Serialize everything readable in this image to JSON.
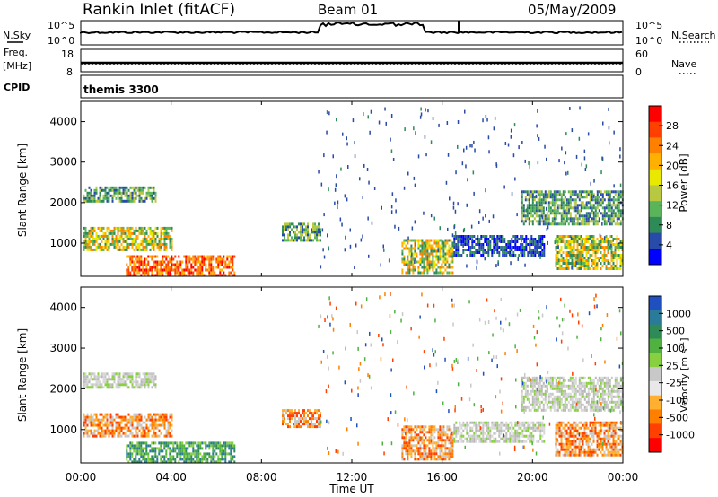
{
  "header": {
    "station": "Rankin Inlet (fitACF)",
    "beam": "Beam 01",
    "date": "05/May/2009"
  },
  "noise_panel": {
    "left_label": "N.Sky",
    "right_label": "N.Search",
    "left_ticks": [
      "10^5",
      "10^0"
    ],
    "right_ticks": [
      "10^5",
      "10^0"
    ]
  },
  "freq_panel": {
    "left_label_1": "Freq.",
    "left_label_2": "[MHz]",
    "right_label": "Nave",
    "left_ticks": [
      "18",
      "8"
    ],
    "right_ticks": [
      "60",
      "0"
    ]
  },
  "cpid_panel": {
    "label": "CPID",
    "value": "themis 3300"
  },
  "power_colorbar": {
    "title": "Power [dB]",
    "ticks": [
      "28",
      "24",
      "20",
      "16",
      "12",
      "8",
      "4"
    ],
    "colors": [
      "#ff0000",
      "#ff4000",
      "#ff8000",
      "#ffb000",
      "#e8e800",
      "#b8c840",
      "#5ab45a",
      "#2e8b57",
      "#284aa8",
      "#0000ff"
    ]
  },
  "velocity_colorbar": {
    "title_main": "Velocity  [m s",
    "title_sup": "-1",
    "title_end": "]",
    "ticks": [
      "1000",
      "500",
      "100",
      "25",
      "-25",
      "-100",
      "-500",
      "-1000"
    ],
    "colors": [
      "#2050c0",
      "#2a7a9a",
      "#2e8b57",
      "#50b040",
      "#88d040",
      "#c8c8c8",
      "#e8e8e8",
      "#ffb030",
      "#ff8000",
      "#ff4000",
      "#ff0000"
    ]
  },
  "y_axis_label": "Slant Range [km]",
  "x_axis_label": "Time UT",
  "chart_data": {
    "type": "heatmap",
    "x_ticks": [
      "00:00",
      "04:00",
      "08:00",
      "12:00",
      "16:00",
      "20:00",
      "00:00"
    ],
    "y_ticks": [
      "1000",
      "2000",
      "3000",
      "4000"
    ],
    "xlim_hours": [
      0,
      24
    ],
    "ylim_km": [
      180,
      4500
    ],
    "power_echo_regions": [
      {
        "start_h": 0.1,
        "end_h": 3.3,
        "range_min": 2050,
        "range_max": 2400,
        "level": "medium"
      },
      {
        "start_h": 0.1,
        "end_h": 4.0,
        "range_min": 850,
        "range_max": 1400,
        "level": "strong"
      },
      {
        "start_h": 2.0,
        "end_h": 6.8,
        "range_min": 200,
        "range_max": 700,
        "level": "very_strong"
      },
      {
        "start_h": 8.9,
        "end_h": 10.6,
        "range_min": 1100,
        "range_max": 1500,
        "level": "medium"
      },
      {
        "start_h": 14.2,
        "end_h": 16.5,
        "range_min": 300,
        "range_max": 1100,
        "level": "strong"
      },
      {
        "start_h": 16.5,
        "end_h": 20.5,
        "range_min": 700,
        "range_max": 1200,
        "level": "weak"
      },
      {
        "start_h": 19.5,
        "end_h": 24.0,
        "range_min": 1500,
        "range_max": 2300,
        "level": "medium"
      },
      {
        "start_h": 21.0,
        "end_h": 24.0,
        "range_min": 400,
        "range_max": 1200,
        "level": "strong"
      }
    ],
    "velocity_echo_regions": [
      {
        "start_h": 0.1,
        "end_h": 3.3,
        "range_min": 2050,
        "range_max": 2400,
        "velocity": "near_zero"
      },
      {
        "start_h": 0.1,
        "end_h": 4.0,
        "range_min": 850,
        "range_max": 1400,
        "velocity": "negative"
      },
      {
        "start_h": 2.0,
        "end_h": 6.8,
        "range_min": 200,
        "range_max": 700,
        "velocity": "positive"
      },
      {
        "start_h": 8.9,
        "end_h": 10.6,
        "range_min": 1100,
        "range_max": 1500,
        "velocity": "negative"
      },
      {
        "start_h": 14.2,
        "end_h": 16.5,
        "range_min": 300,
        "range_max": 1100,
        "velocity": "negative"
      },
      {
        "start_h": 16.5,
        "end_h": 20.5,
        "range_min": 700,
        "range_max": 1200,
        "velocity": "near_zero"
      },
      {
        "start_h": 19.5,
        "end_h": 24.0,
        "range_min": 1500,
        "range_max": 2300,
        "velocity": "near_zero"
      },
      {
        "start_h": 21.0,
        "end_h": 24.0,
        "range_min": 400,
        "range_max": 1200,
        "velocity": "negative"
      }
    ]
  }
}
